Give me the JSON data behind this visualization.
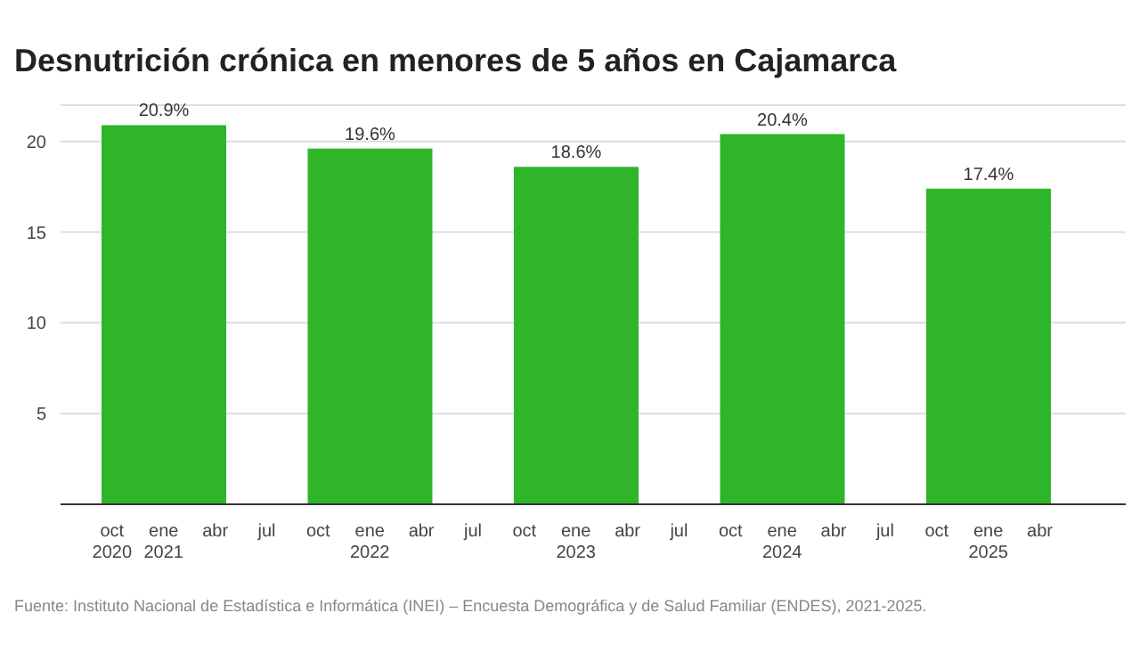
{
  "chart_data": {
    "type": "bar",
    "title": "Desnutrición crónica en menores de 5 años en Cajamarca",
    "x": [
      "2021-01",
      "2022-01",
      "2023-01",
      "2024-01",
      "2025-01"
    ],
    "values": [
      20.9,
      19.6,
      18.6,
      20.4,
      17.4
    ],
    "value_labels": [
      "20.9%",
      "19.6%",
      "18.6%",
      "20.4%",
      "17.4%"
    ],
    "color": "#2eb52a",
    "xlim": [
      "2020-07",
      "2025-09"
    ],
    "xticks": [
      {
        "value": "2020-10",
        "label": "oct 2020"
      },
      {
        "value": "2021-01",
        "label": "ene 2021"
      },
      {
        "value": "2021-04",
        "label": "abr"
      },
      {
        "value": "2021-07",
        "label": "jul"
      },
      {
        "value": "2021-10",
        "label": "oct"
      },
      {
        "value": "2022-01",
        "label": "ene 2022"
      },
      {
        "value": "2022-04",
        "label": "abr"
      },
      {
        "value": "2022-07",
        "label": "jul"
      },
      {
        "value": "2022-10",
        "label": "oct"
      },
      {
        "value": "2023-01",
        "label": "ene 2023"
      },
      {
        "value": "2023-04",
        "label": "abr"
      },
      {
        "value": "2023-07",
        "label": "jul"
      },
      {
        "value": "2023-10",
        "label": "oct"
      },
      {
        "value": "2024-01",
        "label": "ene 2024"
      },
      {
        "value": "2024-04",
        "label": "abr"
      },
      {
        "value": "2024-07",
        "label": "jul"
      },
      {
        "value": "2024-10",
        "label": "oct"
      },
      {
        "value": "2025-01",
        "label": "ene 2025"
      },
      {
        "value": "2025-04",
        "label": "abr"
      }
    ],
    "ylim": [
      0,
      22
    ],
    "yticks": [
      {
        "value": 0,
        "label": null
      },
      5,
      10,
      15,
      20
    ],
    "grid": "y",
    "annotations": [
      "Fuente: Instituto Nacional de Estadística e Informática (INEI) – Encuesta Demográfica y de Salud Familiar (ENDES), 2021-2025."
    ]
  }
}
